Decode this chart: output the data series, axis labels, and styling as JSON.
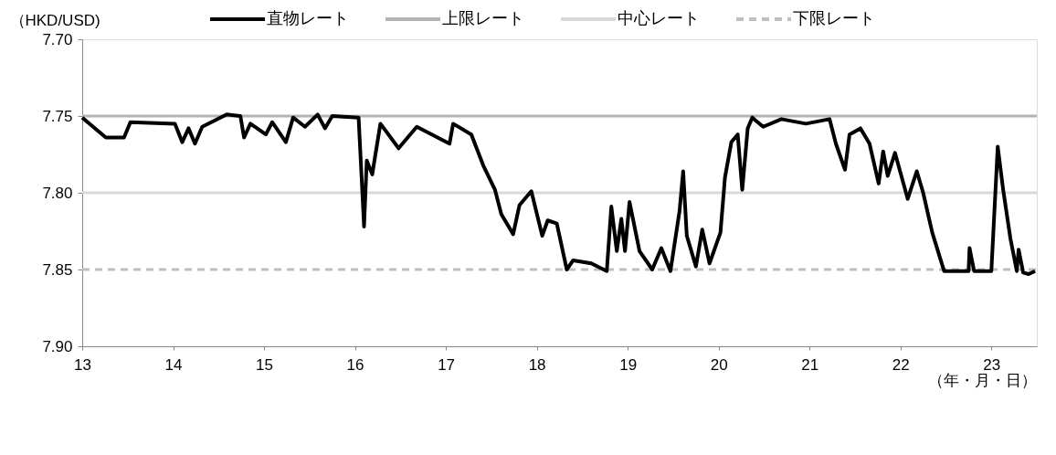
{
  "chart_data": {
    "type": "line",
    "ylabel": "（HKD/USD)",
    "annotations": [
      "（年・月・日）"
    ],
    "xlim": [
      13,
      23.5
    ],
    "xticks": [
      13,
      14,
      15,
      16,
      17,
      18,
      19,
      20,
      21,
      22,
      23
    ],
    "ylim": [
      7.9,
      7.7
    ],
    "yticks": [
      {
        "value": 7.7,
        "label": "7.70"
      },
      {
        "value": 7.75,
        "label": "7.75"
      },
      {
        "value": 7.8,
        "label": "7.80"
      },
      {
        "value": 7.85,
        "label": "7.85"
      },
      {
        "value": 7.9,
        "label": "7.90"
      }
    ],
    "grid": false,
    "legend": "top",
    "marker": "none",
    "series": [
      {
        "name": "直物レート",
        "color": "#000000",
        "line_style": "solid",
        "x": [
          13.0,
          13.26,
          13.46,
          13.53,
          14.02,
          14.1,
          14.17,
          14.24,
          14.32,
          14.52,
          14.59,
          14.74,
          14.78,
          14.85,
          15.02,
          15.09,
          15.24,
          15.32,
          15.45,
          15.59,
          15.67,
          15.75,
          16.04,
          16.08,
          16.1,
          16.13,
          16.19,
          16.28,
          16.48,
          16.68,
          17.04,
          17.08,
          17.28,
          17.41,
          17.54,
          17.61,
          17.74,
          17.81,
          17.94,
          18.06,
          18.12,
          18.22,
          18.33,
          18.4,
          18.6,
          18.77,
          18.82,
          18.88,
          18.93,
          18.97,
          19.02,
          19.13,
          19.27,
          19.37,
          19.47,
          19.57,
          19.61,
          19.65,
          19.75,
          19.82,
          19.9,
          20.02,
          20.07,
          20.14,
          20.21,
          20.26,
          20.32,
          20.37,
          20.49,
          20.69,
          20.96,
          21.22,
          21.29,
          21.39,
          21.44,
          21.56,
          21.66,
          21.76,
          21.81,
          21.86,
          21.94,
          22.08,
          22.18,
          22.25,
          22.35,
          22.48,
          22.75,
          22.76,
          22.81,
          23.0,
          23.07,
          23.13,
          23.21,
          23.28,
          23.3,
          23.35,
          23.41,
          23.48
        ],
        "values": [
          7.751,
          7.764,
          7.764,
          7.754,
          7.755,
          7.767,
          7.758,
          7.768,
          7.757,
          7.751,
          7.749,
          7.75,
          7.764,
          7.755,
          7.762,
          7.754,
          7.767,
          7.751,
          7.757,
          7.749,
          7.758,
          7.75,
          7.751,
          7.798,
          7.822,
          7.779,
          7.788,
          7.755,
          7.771,
          7.757,
          7.768,
          7.755,
          7.762,
          7.782,
          7.798,
          7.814,
          7.827,
          7.808,
          7.799,
          7.828,
          7.818,
          7.82,
          7.85,
          7.844,
          7.846,
          7.851,
          7.809,
          7.838,
          7.817,
          7.838,
          7.806,
          7.838,
          7.85,
          7.836,
          7.851,
          7.812,
          7.786,
          7.828,
          7.848,
          7.824,
          7.846,
          7.826,
          7.79,
          7.767,
          7.762,
          7.798,
          7.758,
          7.751,
          7.757,
          7.752,
          7.755,
          7.752,
          7.768,
          7.785,
          7.762,
          7.758,
          7.768,
          7.794,
          7.773,
          7.789,
          7.774,
          7.804,
          7.786,
          7.8,
          7.826,
          7.851,
          7.851,
          7.836,
          7.851,
          7.851,
          7.77,
          7.798,
          7.83,
          7.851,
          7.837,
          7.852,
          7.853,
          7.851
        ]
      },
      {
        "name": "上限レート",
        "color": "#b4b4b4",
        "line_style": "solid",
        "x": [
          13,
          23.5
        ],
        "values": [
          7.75,
          7.75
        ]
      },
      {
        "name": "中心レート",
        "color": "#d9d9d9",
        "line_style": "solid",
        "x": [
          13,
          23.5
        ],
        "values": [
          7.8,
          7.8
        ]
      },
      {
        "name": "下限レート",
        "color": "#bfbfbf",
        "line_style": "dashed",
        "x": [
          13,
          23.5
        ],
        "values": [
          7.85,
          7.85
        ]
      }
    ]
  }
}
